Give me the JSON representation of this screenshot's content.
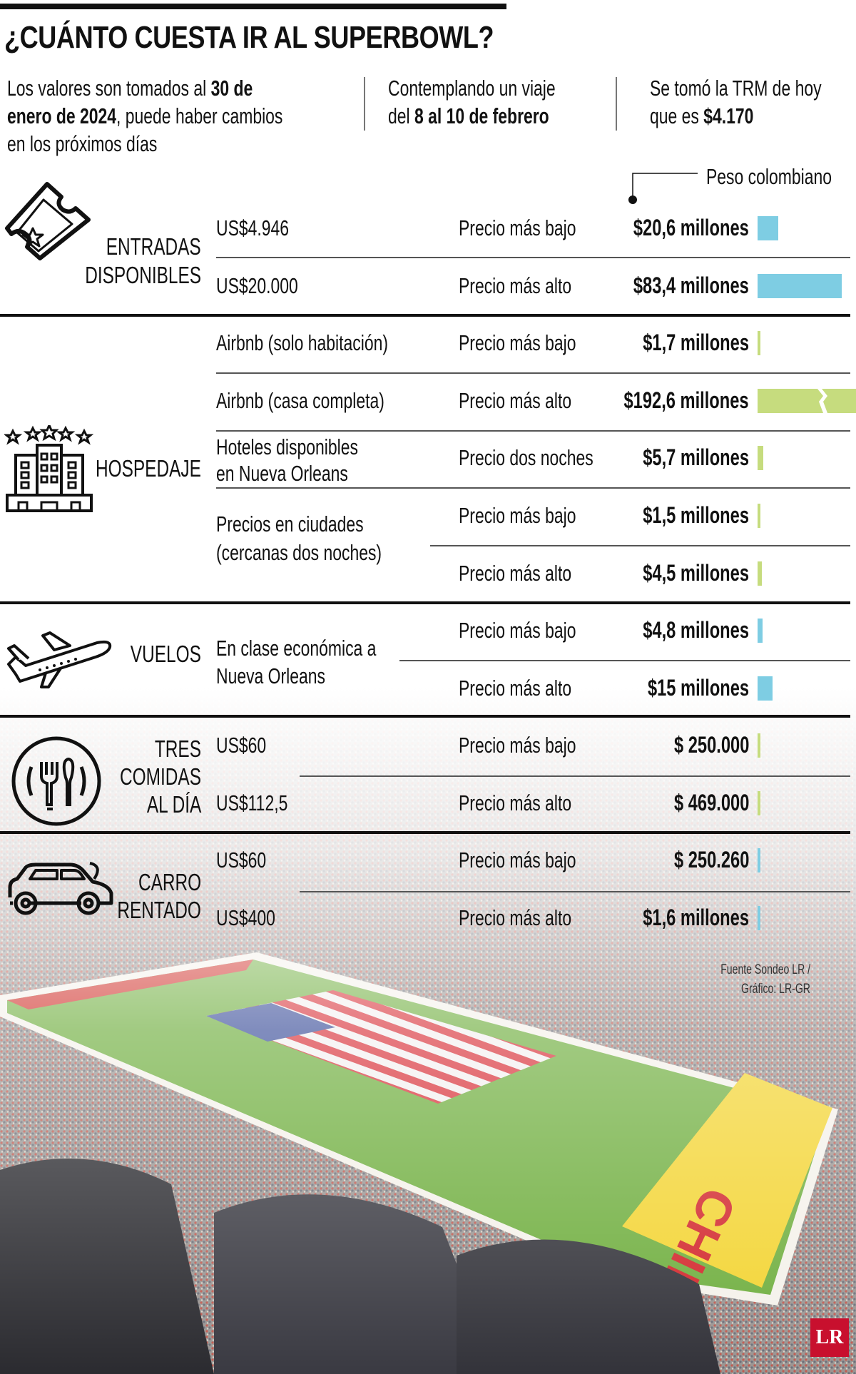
{
  "title": "¿CUÁNTO CUESTA IR AL SUPERBOWL?",
  "intro": [
    {
      "parts": [
        [
          "Los valores son tomados al ",
          false
        ],
        [
          "30 de",
          true
        ],
        [
          "\n",
          false
        ],
        [
          "enero de 2024",
          true
        ],
        [
          ", puede haber cambios",
          false
        ],
        [
          "\n",
          false
        ],
        [
          "en los próximos días",
          false
        ]
      ]
    },
    {
      "parts": [
        [
          "Contemplando un viaje",
          false
        ],
        [
          "\n",
          false
        ],
        [
          "del ",
          false
        ],
        [
          "8 al 10 de febrero",
          true
        ]
      ]
    },
    {
      "parts": [
        [
          "Se tomó la TRM de hoy",
          false
        ],
        [
          "\n",
          false
        ],
        [
          "que es ",
          false
        ],
        [
          "$4.170",
          true
        ]
      ]
    }
  ],
  "legend": "Peso colombiano",
  "colors": {
    "blue": "#7ecde3",
    "green": "#c6dc7e"
  },
  "sections": [
    {
      "id": "entradas",
      "label": [
        "ENTRADAS",
        "DISPONIBLES"
      ],
      "icon": "ticket-icon",
      "color": "blue",
      "rows": [
        {
          "left": [
            "US$4.946"
          ],
          "label": "Precio más bajo",
          "value": "$20,6 millones",
          "millions": 20.6
        },
        {
          "left": [
            "US$20.000"
          ],
          "label": "Precio más alto",
          "value": "$83,4 millones",
          "millions": 83.4
        }
      ]
    },
    {
      "id": "hospedaje",
      "label": [
        "HOSPEDAJE"
      ],
      "icon": "hotel-icon",
      "color": "green",
      "rows": [
        {
          "left": [
            "Airbnb (solo habitación)"
          ],
          "label": "Precio más bajo",
          "value": "$1,7 millones",
          "millions": 1.7
        },
        {
          "left": [
            "Airbnb (casa completa)"
          ],
          "label": "Precio más alto",
          "value": "$192,6 millones",
          "millions": 192.6,
          "broken": true
        },
        {
          "left": [
            "Hoteles disponibles",
            "en Nueva Orleans"
          ],
          "label": "Precio dos noches",
          "value": "$5,7 millones",
          "millions": 5.7
        },
        {
          "left": [
            "Precios en ciudades",
            "(cercanas dos noches)"
          ],
          "label": "Precio más bajo",
          "value": "$1,5 millones",
          "millions": 1.5
        },
        {
          "left": [],
          "label": "Precio más alto",
          "value": "$4,5 millones",
          "millions": 4.5
        }
      ]
    },
    {
      "id": "vuelos",
      "label": [
        "VUELOS"
      ],
      "icon": "airplane-icon",
      "color": "blue",
      "rows": [
        {
          "left": [
            "En clase económica a",
            "Nueva Orleans"
          ],
          "label": "Precio más bajo",
          "value": "$4,8 millones",
          "millions": 4.8
        },
        {
          "left": [],
          "label": "Precio más alto",
          "value": "$15 millones",
          "millions": 15
        }
      ]
    },
    {
      "id": "comidas",
      "label": [
        "TRES",
        "COMIDAS",
        "AL DÍA"
      ],
      "icon": "fork-spoon-plate-icon",
      "color": "green",
      "rows": [
        {
          "left": [
            "US$60"
          ],
          "label": "Precio más bajo",
          "value": "$ 250.000",
          "millions": 0.25
        },
        {
          "left": [
            "US$112,5"
          ],
          "label": "Precio más alto",
          "value": "$ 469.000",
          "millions": 0.469
        }
      ]
    },
    {
      "id": "carro",
      "label": [
        "CARRO",
        "RENTADO"
      ],
      "icon": "car-icon",
      "color": "blue",
      "rows": [
        {
          "left": [
            "US$60"
          ],
          "label": "Precio más bajo",
          "value": "$ 250.260",
          "millions": 0.25026
        },
        {
          "left": [
            "US$400"
          ],
          "label": "Precio más alto",
          "value": "$1,6 millones",
          "millions": 1.6
        }
      ]
    }
  ],
  "source": [
    "Fuente Sondeo LR /",
    "Gráfico: LR-GR"
  ],
  "logo": "LR"
}
